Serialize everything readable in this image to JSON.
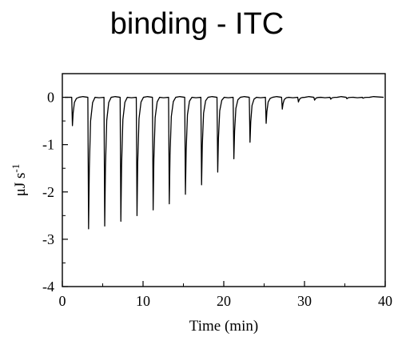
{
  "title": "binding - ITC",
  "chart_data": {
    "type": "line",
    "title": "binding - ITC",
    "xlabel": "Time (min)",
    "ylabel_main": "μJ s",
    "ylabel_sup": "-1",
    "xlim": [
      0,
      40
    ],
    "ylim": [
      -4,
      0.5
    ],
    "xticks": [
      0,
      10,
      20,
      30,
      40
    ],
    "xtick_labels": [
      "0",
      "10",
      "20",
      "30",
      "40"
    ],
    "yticks": [
      0,
      -1,
      -2,
      -3,
      -4
    ],
    "ytick_labels": [
      "0",
      "-1",
      "-2",
      "-3",
      "-4"
    ],
    "grid": false,
    "baseline": 0,
    "series": [
      {
        "injection_times_min": [
          1.2,
          3.2,
          5.2,
          7.2,
          9.2,
          11.2,
          13.2,
          15.2,
          17.2,
          19.2,
          21.2,
          23.2,
          25.2,
          27.2,
          29.2,
          31.2,
          33.2,
          35.2,
          37.2
        ],
        "peak_values": [
          -0.6,
          -2.78,
          -2.72,
          -2.62,
          -2.5,
          -2.38,
          -2.25,
          -2.05,
          -1.85,
          -1.58,
          -1.3,
          -0.95,
          -0.55,
          -0.25,
          -0.1,
          -0.06,
          -0.04,
          -0.03,
          -0.02
        ]
      }
    ],
    "colors": {
      "line": "#000000",
      "axis": "#000000"
    }
  }
}
